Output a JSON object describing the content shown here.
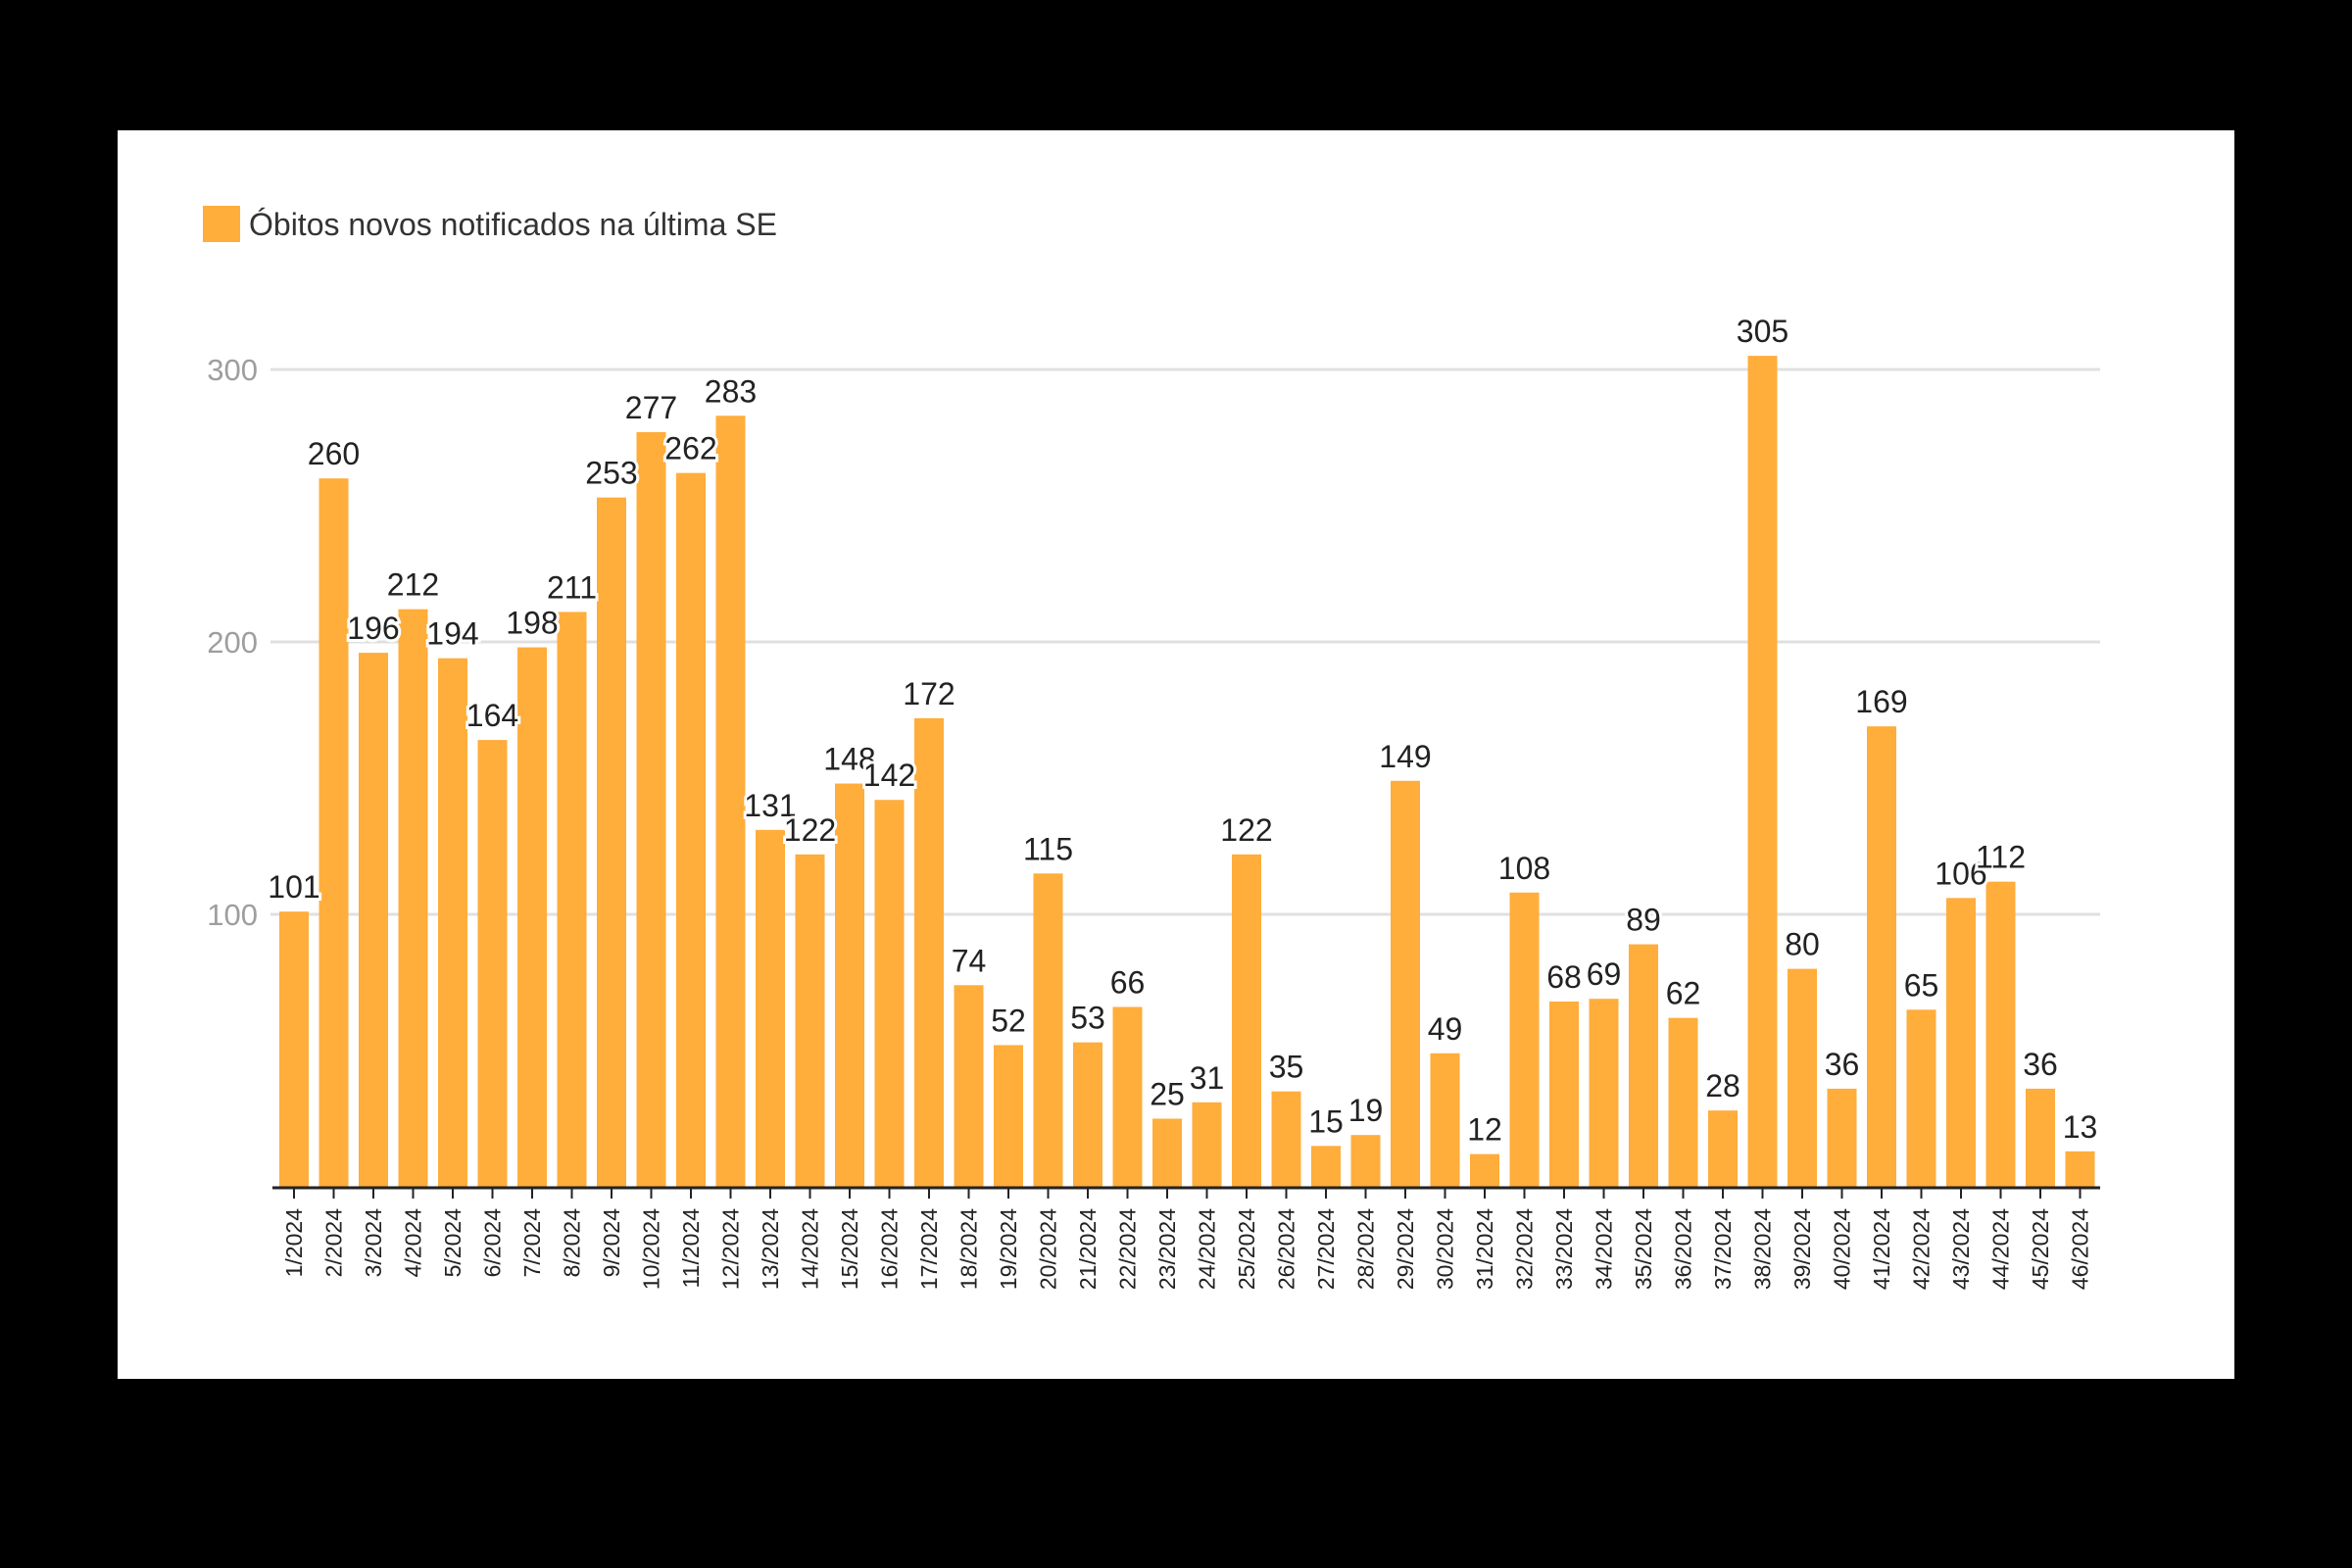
{
  "chart_data": {
    "type": "bar",
    "title": "",
    "xlabel": "",
    "ylabel": "",
    "ylim": [
      0,
      320
    ],
    "yticks": [
      100,
      200,
      300
    ],
    "grid": true,
    "legend": {
      "placement": "top-left",
      "entries": [
        "Óbitos novos notificados na última SE"
      ]
    },
    "colors": {
      "bar": "#ffad3b",
      "grid": "#e0e0e0",
      "axis": "#222222",
      "tick_label": "#9e9e9e",
      "data_label": "#222222"
    },
    "categories": [
      "1/2024",
      "2/2024",
      "3/2024",
      "4/2024",
      "5/2024",
      "6/2024",
      "7/2024",
      "8/2024",
      "9/2024",
      "10/2024",
      "11/2024",
      "12/2024",
      "13/2024",
      "14/2024",
      "15/2024",
      "16/2024",
      "17/2024",
      "18/2024",
      "19/2024",
      "20/2024",
      "21/2024",
      "22/2024",
      "23/2024",
      "24/2024",
      "25/2024",
      "26/2024",
      "27/2024",
      "28/2024",
      "29/2024",
      "30/2024",
      "31/2024",
      "32/2024",
      "33/2024",
      "34/2024",
      "35/2024",
      "36/2024",
      "37/2024",
      "38/2024",
      "39/2024",
      "40/2024",
      "41/2024",
      "42/2024",
      "43/2024",
      "44/2024",
      "45/2024",
      "46/2024"
    ],
    "series": [
      {
        "name": "Óbitos novos notificados na última SE",
        "values": [
          101,
          260,
          196,
          212,
          194,
          164,
          198,
          211,
          253,
          277,
          262,
          283,
          131,
          122,
          148,
          142,
          172,
          74,
          52,
          115,
          53,
          66,
          25,
          31,
          122,
          35,
          15,
          19,
          149,
          49,
          12,
          108,
          68,
          69,
          89,
          62,
          28,
          305,
          80,
          36,
          169,
          65,
          106,
          112,
          36,
          13
        ]
      }
    ]
  }
}
